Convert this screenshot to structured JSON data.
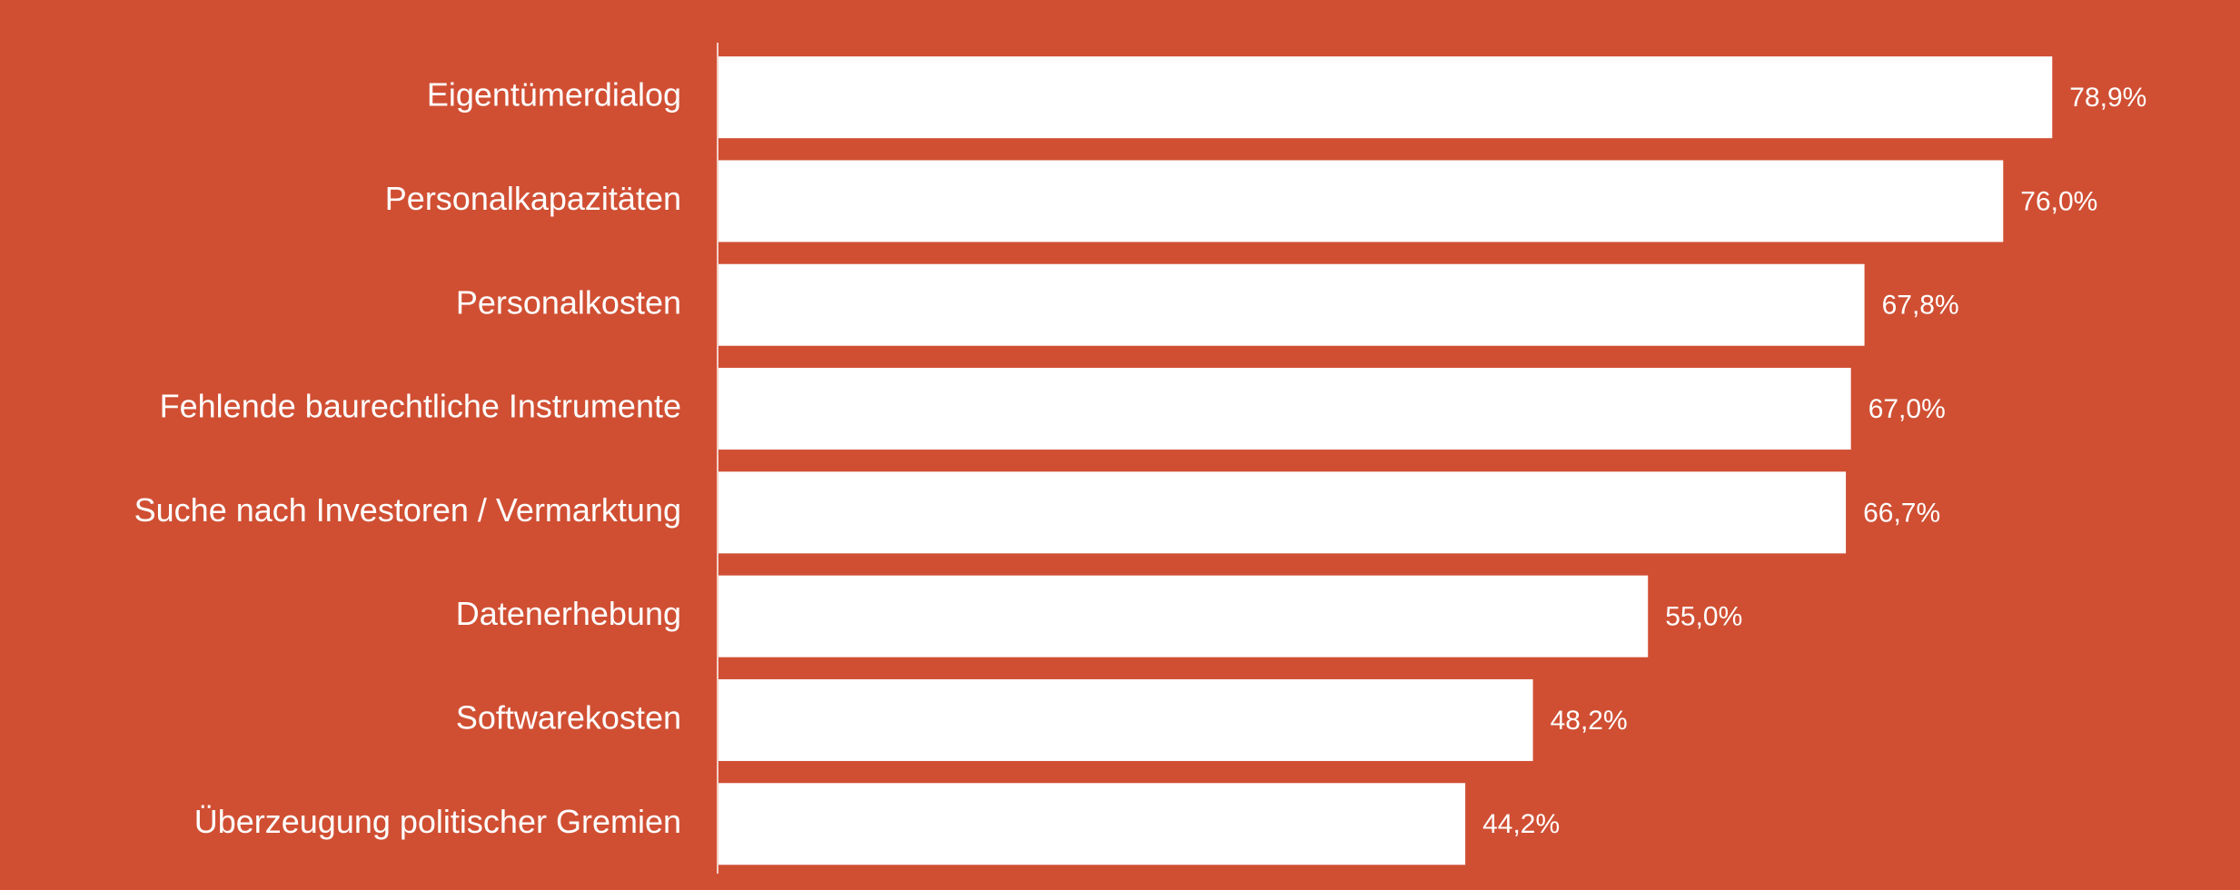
{
  "chart_data": {
    "type": "bar",
    "orientation": "horizontal",
    "categories": [
      "Eigentümerdialog",
      "Personalkapazitäten",
      "Personalkosten",
      "Fehlende baurechtliche Instrumente",
      "Suche nach Investoren / Vermarktung",
      "Datenerhebung",
      "Softwarekosten",
      "Überzeugung politischer Gremien"
    ],
    "values": [
      78.9,
      76.0,
      67.8,
      67.0,
      66.7,
      55.0,
      48.2,
      44.2
    ],
    "value_labels": [
      "78,9%",
      "76,0%",
      "67,8%",
      "67,0%",
      "66,7%",
      "55,0%",
      "48,2%",
      "44,2%"
    ],
    "color": "#ffffff",
    "background": "#d04f33",
    "xlim": [
      0,
      90
    ]
  }
}
